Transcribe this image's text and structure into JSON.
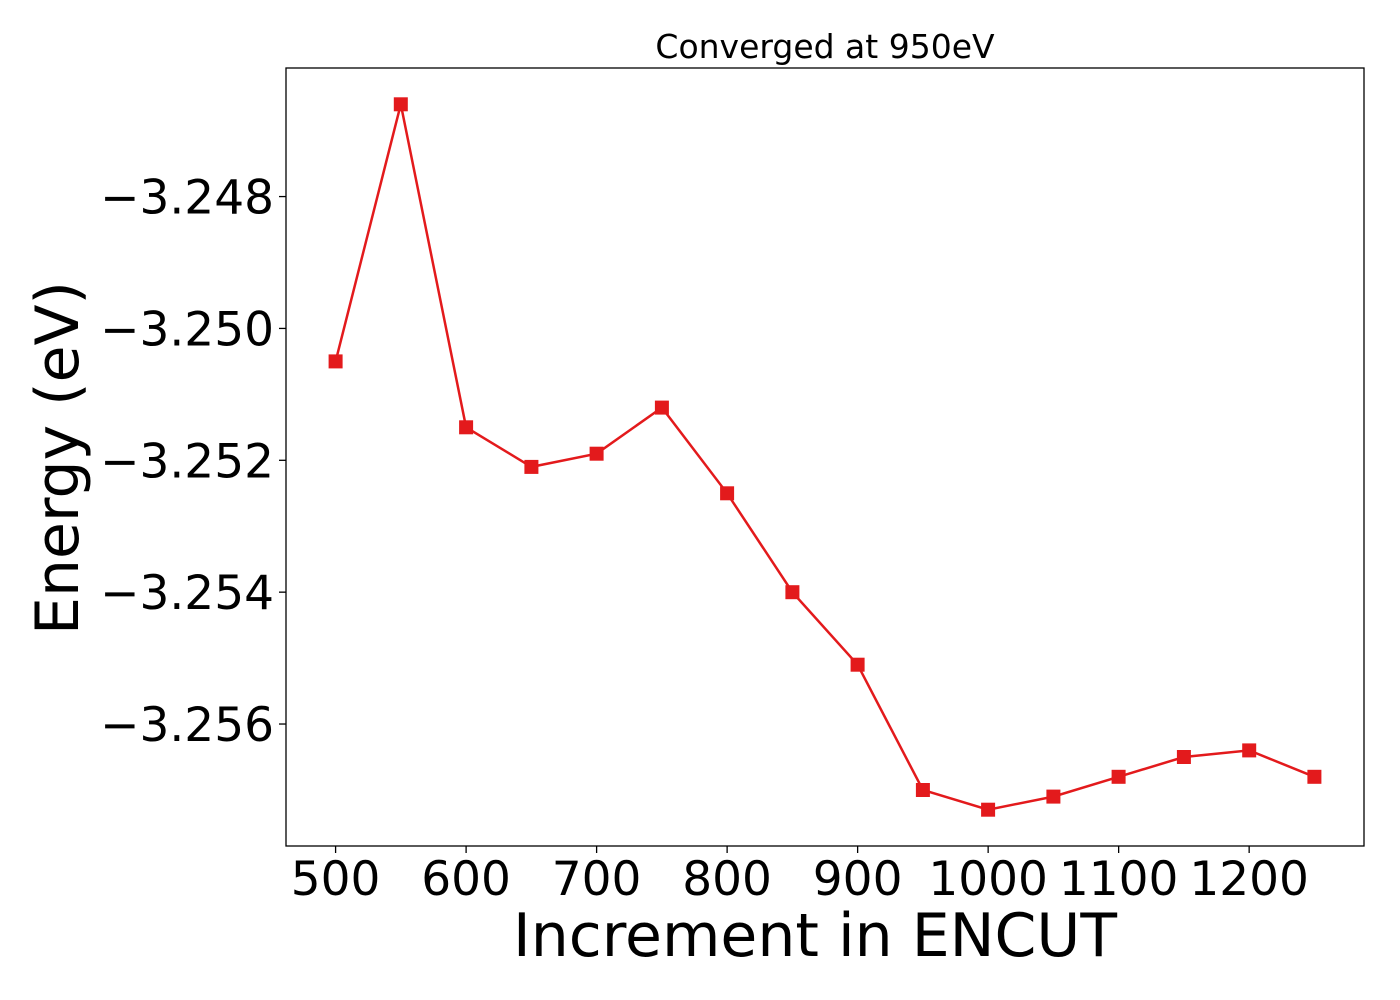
{
  "chart_data": {
    "type": "line",
    "title": "Converged at 950eV",
    "xlabel": "Increment in ENCUT",
    "ylabel": "Energy (eV)",
    "xlim": [
      462,
      1288
    ],
    "ylim": [
      -3.25785,
      -3.24605
    ],
    "xticks": [
      500,
      600,
      700,
      800,
      900,
      1000,
      1100,
      1200
    ],
    "xtick_labels": [
      "500",
      "600",
      "700",
      "800",
      "900",
      "1000",
      "1100",
      "1200"
    ],
    "yticks": [
      -3.248,
      -3.25,
      -3.252,
      -3.254,
      -3.256
    ],
    "ytick_labels": [
      "−3.248",
      "−3.250",
      "−3.252",
      "−3.254",
      "−3.256"
    ],
    "grid": false,
    "series": [
      {
        "color": "#e31a1c",
        "marker": "square",
        "x": [
          500,
          550,
          600,
          650,
          700,
          750,
          800,
          850,
          900,
          950,
          1000,
          1050,
          1100,
          1150,
          1200,
          1250
        ],
        "y": [
          -3.2505,
          -3.2466,
          -3.2515,
          -3.2521,
          -3.2519,
          -3.2512,
          -3.2525,
          -3.254,
          -3.2551,
          -3.257,
          -3.2573,
          -3.2571,
          -3.2568,
          -3.2565,
          -3.2564,
          -3.2568
        ]
      }
    ]
  }
}
